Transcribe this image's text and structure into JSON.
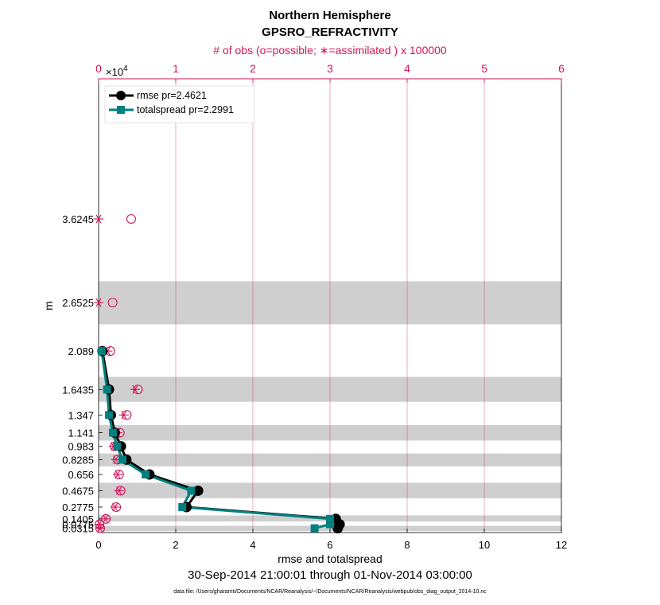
{
  "chart_data": {
    "type": "line",
    "title": "Northern Hemisphere",
    "subtitle": "GPSRO_REFRACTIVITY",
    "top_axis_label": "# of obs (o=possible; ∗=assimilated ) x 100000",
    "top_axis_exponent_base": "×10",
    "top_axis_exponent_power": "4",
    "xlabel": "rmse and totalspread",
    "ylabel": "m",
    "date_range": "30-Sep-2014 21:00:01 through 01-Nov-2014 03:00:00",
    "data_file": "data file: /Users/gharamti/Documents/NCAR/Reanalysis/~/Documents/NCAR/Reanalysis/webpub/obs_diag_output_2014-10.nc",
    "xlim": [
      0,
      12
    ],
    "top_xlim": [
      0,
      6
    ],
    "x_ticks": [
      "0",
      "2",
      "4",
      "6",
      "8",
      "10",
      "12"
    ],
    "top_x_ticks": [
      "0",
      "1",
      "2",
      "3",
      "4",
      "5",
      "6"
    ],
    "y_levels": [
      0.0315,
      0.0775,
      0.1405,
      0.2775,
      0.4675,
      0.656,
      0.8285,
      0.983,
      1.141,
      1.347,
      1.6435,
      2.089,
      2.6525,
      3.6245
    ],
    "y_tick_labels": [
      "0.0315",
      "0.0775",
      "0.1405",
      "0.2775",
      "0.4675",
      "0.656",
      "0.8285",
      "0.983",
      "1.141",
      "1.347",
      "1.6435",
      "2.089",
      "2.6525",
      "3.6245"
    ],
    "shaded_bands": [
      [
        0.0,
        0.06
      ],
      [
        0.11,
        0.18
      ],
      [
        0.38,
        0.56
      ],
      [
        0.75,
        0.9
      ],
      [
        1.05,
        1.23
      ],
      [
        1.5,
        1.79
      ],
      [
        2.4,
        2.9
      ]
    ],
    "series": [
      {
        "name": "rmse",
        "legend": "rmse  pr=2.4621",
        "color": "#000000",
        "marker": "circle",
        "levels": [
          0.0315,
          0.0775,
          0.1405,
          0.2775,
          0.4675,
          0.656,
          0.8285,
          0.983,
          1.141,
          1.347,
          1.6435,
          2.089
        ],
        "values": [
          6.2,
          6.25,
          6.15,
          2.28,
          2.58,
          1.32,
          0.72,
          0.58,
          0.42,
          0.32,
          0.27,
          0.1
        ]
      },
      {
        "name": "totalspread",
        "legend": "totalspread  pr=2.2991",
        "color": "#008080",
        "marker": "square",
        "levels": [
          0.0315,
          0.0775,
          0.1405,
          0.2775,
          0.4675,
          0.656,
          0.8285,
          0.983,
          1.141,
          1.347,
          1.6435,
          2.089
        ],
        "values": [
          5.6,
          6.0,
          6.0,
          2.17,
          2.4,
          1.22,
          0.62,
          0.48,
          0.37,
          0.27,
          0.22,
          0.08
        ]
      }
    ],
    "obs_possible": {
      "levels": [
        0.0315,
        0.0775,
        0.1405,
        0.2775,
        0.4675,
        0.656,
        0.8285,
        0.983,
        1.141,
        1.347,
        1.6435,
        2.089,
        2.6525,
        3.6245
      ],
      "values": [
        2000,
        1200,
        9500,
        22800,
        28500,
        26500,
        24500,
        21000,
        27500,
        36500,
        51000,
        15200,
        18200,
        42200
      ]
    },
    "obs_assimilated": {
      "levels": [
        0.0315,
        0.0775,
        0.1405,
        0.2775,
        0.4675,
        0.656,
        0.8285,
        0.983,
        1.141,
        1.347,
        1.6435,
        2.089,
        2.6525,
        3.6245
      ],
      "values": [
        1800,
        1000,
        9000,
        21500,
        26500,
        24800,
        22500,
        19200,
        24500,
        32800,
        47300,
        11700,
        0,
        0
      ]
    }
  }
}
